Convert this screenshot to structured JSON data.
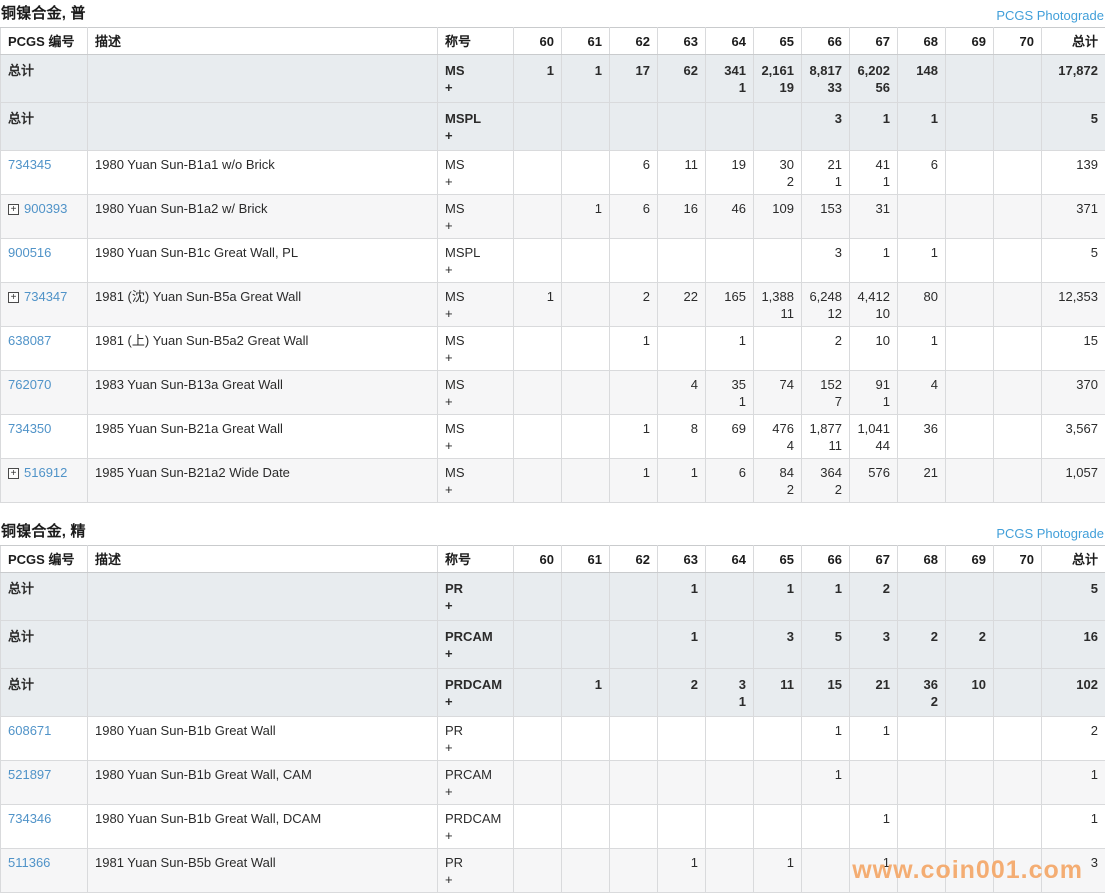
{
  "photograde_label": "PCGS Photograde",
  "summary_label": "总计",
  "watermark": "www.coin001.com",
  "accent_colors": {
    "link_blue": "#5093c8",
    "photograde_blue": "#419fd9",
    "summary_row_bg": "#e8ecef",
    "watermark_orange": "#f4aa6c"
  },
  "header": {
    "pcgs": "PCGS 编号",
    "desc": "描述",
    "designation": "称号",
    "total": "总计"
  },
  "grade_labels": [
    "60",
    "61",
    "62",
    "63",
    "64",
    "65",
    "66",
    "67",
    "68",
    "69",
    "70"
  ],
  "tables": [
    {
      "title": "铜镍合金, 普",
      "summary_rows": [
        {
          "designation": "MS",
          "plus": "+",
          "values": [
            "1",
            "1",
            "17",
            "62",
            "341",
            "2,161",
            "8,817",
            "6,202",
            "148",
            "",
            ""
          ],
          "plus_values": [
            "",
            "",
            "",
            "",
            "1",
            "19",
            "33",
            "56",
            "",
            "",
            ""
          ],
          "total": "17,872"
        },
        {
          "designation": "MSPL",
          "plus": "+",
          "values": [
            "",
            "",
            "",
            "",
            "",
            "",
            "3",
            "1",
            "1",
            "",
            ""
          ],
          "plus_values": [],
          "total": "5"
        }
      ],
      "rows": [
        {
          "pcgs": "734345",
          "expandable": false,
          "desc": "1980 Yuan Sun-B1a1 w/o Brick",
          "designation": "MS",
          "plus": "+",
          "values": [
            "",
            "",
            "6",
            "11",
            "19",
            "30",
            "21",
            "41",
            "6",
            "",
            ""
          ],
          "plus_values": [
            "",
            "",
            "",
            "",
            "",
            "2",
            "1",
            "1",
            "",
            "",
            ""
          ],
          "total": "139"
        },
        {
          "pcgs": "900393",
          "expandable": true,
          "desc": "1980 Yuan Sun-B1a2 w/ Brick",
          "designation": "MS",
          "plus": "+",
          "values": [
            "",
            "1",
            "6",
            "16",
            "46",
            "109",
            "153",
            "31",
            "",
            "",
            ""
          ],
          "plus_values": [],
          "total": "371"
        },
        {
          "pcgs": "900516",
          "expandable": false,
          "desc": "1980 Yuan Sun-B1c Great Wall, PL",
          "designation": "MSPL",
          "plus": "+",
          "values": [
            "",
            "",
            "",
            "",
            "",
            "",
            "3",
            "1",
            "1",
            "",
            ""
          ],
          "plus_values": [],
          "total": "5"
        },
        {
          "pcgs": "734347",
          "expandable": true,
          "desc": "1981 (沈) Yuan Sun-B5a Great Wall",
          "designation": "MS",
          "plus": "+",
          "values": [
            "1",
            "",
            "2",
            "22",
            "165",
            "1,388",
            "6,248",
            "4,412",
            "80",
            "",
            ""
          ],
          "plus_values": [
            "",
            "",
            "",
            "",
            "",
            "11",
            "12",
            "10",
            "",
            "",
            ""
          ],
          "total": "12,353"
        },
        {
          "pcgs": "638087",
          "expandable": false,
          "desc": "1981 (上) Yuan Sun-B5a2 Great Wall",
          "designation": "MS",
          "plus": "+",
          "values": [
            "",
            "",
            "1",
            "",
            "1",
            "",
            "2",
            "10",
            "1",
            "",
            ""
          ],
          "plus_values": [],
          "total": "15"
        },
        {
          "pcgs": "762070",
          "expandable": false,
          "desc": "1983 Yuan Sun-B13a Great Wall",
          "designation": "MS",
          "plus": "+",
          "values": [
            "",
            "",
            "",
            "4",
            "35",
            "74",
            "152",
            "91",
            "4",
            "",
            ""
          ],
          "plus_values": [
            "",
            "",
            "",
            "",
            "1",
            "",
            "7",
            "1",
            "",
            "",
            ""
          ],
          "total": "370"
        },
        {
          "pcgs": "734350",
          "expandable": false,
          "desc": "1985 Yuan Sun-B21a Great Wall",
          "designation": "MS",
          "plus": "+",
          "values": [
            "",
            "",
            "1",
            "8",
            "69",
            "476",
            "1,877",
            "1,041",
            "36",
            "",
            ""
          ],
          "plus_values": [
            "",
            "",
            "",
            "",
            "",
            "4",
            "11",
            "44",
            "",
            "",
            ""
          ],
          "total": "3,567"
        },
        {
          "pcgs": "516912",
          "expandable": true,
          "desc": "1985 Yuan Sun-B21a2 Wide Date",
          "designation": "MS",
          "plus": "+",
          "values": [
            "",
            "",
            "1",
            "1",
            "6",
            "84",
            "364",
            "576",
            "21",
            "",
            ""
          ],
          "plus_values": [
            "",
            "",
            "",
            "",
            "",
            "2",
            "2",
            "",
            "",
            "",
            ""
          ],
          "total": "1,057"
        }
      ]
    },
    {
      "title": "铜镍合金, 精",
      "summary_rows": [
        {
          "designation": "PR",
          "plus": "+",
          "values": [
            "",
            "",
            "",
            "1",
            "",
            "1",
            "1",
            "2",
            "",
            "",
            ""
          ],
          "plus_values": [],
          "total": "5"
        },
        {
          "designation": "PRCAM",
          "plus": "+",
          "values": [
            "",
            "",
            "",
            "1",
            "",
            "3",
            "5",
            "3",
            "2",
            "2",
            ""
          ],
          "plus_values": [],
          "total": "16"
        },
        {
          "designation": "PRDCAM",
          "plus": "+",
          "values": [
            "",
            "1",
            "",
            "2",
            "3",
            "11",
            "15",
            "21",
            "36",
            "10",
            ""
          ],
          "plus_values": [
            "",
            "",
            "",
            "",
            "1",
            "",
            "",
            "",
            "2",
            "",
            ""
          ],
          "total": "102"
        }
      ],
      "rows": [
        {
          "pcgs": "608671",
          "expandable": false,
          "desc": "1980 Yuan Sun-B1b Great Wall",
          "designation": "PR",
          "plus": "+",
          "values": [
            "",
            "",
            "",
            "",
            "",
            "",
            "1",
            "1",
            "",
            "",
            ""
          ],
          "plus_values": [],
          "total": "2"
        },
        {
          "pcgs": "521897",
          "expandable": false,
          "desc": "1980 Yuan Sun-B1b Great Wall, CAM",
          "designation": "PRCAM",
          "plus": "+",
          "values": [
            "",
            "",
            "",
            "",
            "",
            "",
            "1",
            "",
            "",
            "",
            ""
          ],
          "plus_values": [],
          "total": "1"
        },
        {
          "pcgs": "734346",
          "expandable": false,
          "desc": "1980 Yuan Sun-B1b Great Wall, DCAM",
          "designation": "PRDCAM",
          "plus": "+",
          "values": [
            "",
            "",
            "",
            "",
            "",
            "",
            "",
            "1",
            "",
            "",
            ""
          ],
          "plus_values": [],
          "total": "1"
        },
        {
          "pcgs": "511366",
          "expandable": false,
          "desc": "1981 Yuan Sun-B5b Great Wall",
          "designation": "PR",
          "plus": "+",
          "values": [
            "",
            "",
            "",
            "1",
            "",
            "1",
            "",
            "1",
            "",
            "",
            ""
          ],
          "plus_values": [],
          "total": "3"
        }
      ]
    }
  ]
}
